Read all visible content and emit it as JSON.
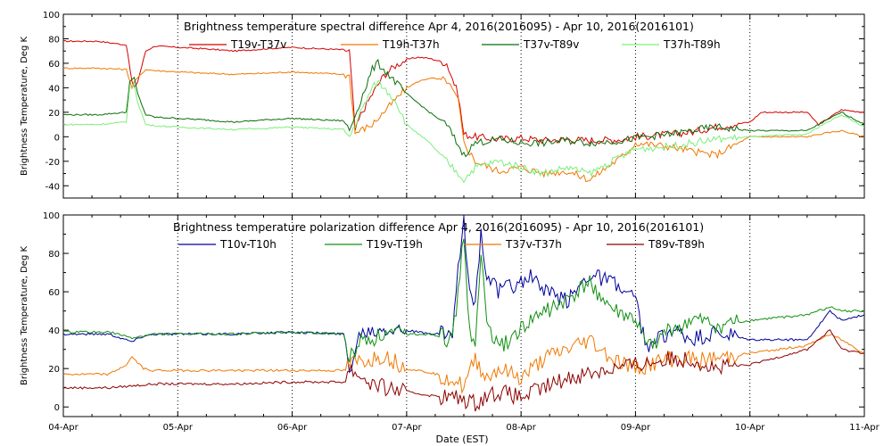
{
  "chart_data": [
    {
      "type": "line",
      "title": "Brightness temperature spectral difference    Apr  4, 2016(2016095) - Apr 10, 2016(2016101)",
      "ylabel": "Brightness Temperature, Deg K",
      "xlabel": "",
      "xlim": [
        "2016-04-04",
        "2016-04-11"
      ],
      "ylim": [
        -50,
        100
      ],
      "yticks": [
        "-40",
        "-20",
        "0",
        "20",
        "40",
        "60",
        "80",
        "100"
      ],
      "grid": "dotted vertical lines at day boundaries",
      "series": [
        {
          "name": "T19v-T37v",
          "color": "#d40000",
          "x": [
            4.0,
            4.3,
            4.55,
            4.6,
            4.62,
            4.65,
            4.72,
            4.8,
            5.0,
            5.2,
            5.5,
            5.8,
            6.0,
            6.2,
            6.45,
            6.5,
            6.55,
            6.6,
            6.7,
            6.8,
            6.9,
            7.0,
            7.1,
            7.2,
            7.35,
            7.45,
            7.5,
            7.6,
            7.8,
            8.0,
            8.2,
            8.4,
            8.6,
            8.9,
            9.0,
            9.3,
            9.5,
            9.7,
            10.0,
            10.1,
            10.5,
            10.6,
            10.8,
            11.0
          ],
          "y": [
            78,
            78,
            75,
            45,
            40,
            45,
            70,
            74,
            73,
            72,
            70,
            72,
            73,
            72,
            71,
            70,
            5,
            18,
            35,
            50,
            58,
            63,
            65,
            64,
            60,
            35,
            2,
            0,
            -2,
            -1,
            -3,
            -2,
            -3,
            -2,
            0,
            2,
            4,
            8,
            12,
            20,
            20,
            10,
            22,
            20
          ]
        },
        {
          "name": "T19h-T37h",
          "color": "#f07800",
          "x": [
            4.0,
            4.3,
            4.55,
            4.6,
            4.62,
            4.65,
            4.72,
            4.8,
            5.0,
            5.2,
            5.5,
            5.8,
            6.0,
            6.2,
            6.45,
            6.5,
            6.55,
            6.7,
            6.85,
            7.0,
            7.1,
            7.2,
            7.35,
            7.45,
            7.5,
            7.6,
            7.8,
            8.0,
            8.2,
            8.4,
            8.6,
            8.9,
            9.0,
            9.3,
            9.5,
            9.7,
            10.0,
            10.5,
            10.6,
            10.8,
            11.0
          ],
          "y": [
            56,
            56,
            55,
            40,
            45,
            48,
            55,
            54,
            53,
            52,
            51,
            52,
            53,
            52,
            51,
            50,
            3,
            10,
            25,
            40,
            45,
            48,
            46,
            30,
            -5,
            -20,
            -28,
            -25,
            -30,
            -28,
            -35,
            -15,
            -5,
            -8,
            -12,
            -15,
            0,
            0,
            2,
            5,
            0
          ]
        },
        {
          "name": "T37v-T89v",
          "color": "#0a6e0a",
          "x": [
            4.0,
            4.3,
            4.55,
            4.58,
            4.62,
            4.65,
            4.72,
            4.8,
            5.0,
            5.2,
            5.5,
            5.8,
            6.0,
            6.2,
            6.45,
            6.5,
            6.6,
            6.7,
            6.75,
            6.9,
            7.0,
            7.2,
            7.35,
            7.5,
            7.6,
            7.8,
            8.0,
            8.2,
            8.4,
            8.6,
            8.9,
            9.0,
            9.3,
            9.5,
            9.7,
            10.0,
            10.5,
            10.6,
            10.8,
            11.0
          ],
          "y": [
            18,
            18,
            20,
            45,
            48,
            35,
            18,
            16,
            15,
            14,
            12,
            14,
            15,
            14,
            13,
            5,
            30,
            55,
            60,
            45,
            35,
            20,
            10,
            -15,
            -5,
            -2,
            -5,
            -5,
            -3,
            -5,
            -3,
            -1,
            2,
            5,
            8,
            5,
            5,
            10,
            20,
            10
          ]
        },
        {
          "name": "T37h-T89h",
          "color": "#7cee7c",
          "x": [
            4.0,
            4.3,
            4.55,
            4.58,
            4.62,
            4.65,
            4.72,
            4.8,
            5.0,
            5.2,
            5.5,
            5.8,
            6.0,
            6.2,
            6.45,
            6.5,
            6.6,
            6.7,
            6.75,
            6.9,
            7.0,
            7.2,
            7.35,
            7.5,
            7.6,
            7.8,
            8.0,
            8.2,
            8.4,
            8.6,
            8.9,
            9.0,
            9.3,
            9.5,
            9.7,
            10.0,
            10.5,
            10.6,
            10.8,
            11.0
          ],
          "y": [
            10,
            10,
            12,
            40,
            42,
            28,
            10,
            9,
            8,
            7,
            6,
            7,
            8,
            7,
            6,
            0,
            20,
            40,
            45,
            30,
            10,
            -5,
            -20,
            -35,
            -25,
            -20,
            -25,
            -30,
            -25,
            -30,
            -15,
            -10,
            -8,
            -5,
            -2,
            0,
            2,
            8,
            18,
            8
          ]
        }
      ]
    },
    {
      "type": "line",
      "title": "Brightness temperature polarization difference    Apr  4, 2016(2016095) - Apr 10, 2016(2016101)",
      "ylabel": "Brightness Temperature, Deg K",
      "xlabel": "Date (EST)",
      "xlim": [
        "2016-04-04",
        "2016-04-11"
      ],
      "ylim": [
        -5,
        100
      ],
      "xticks": [
        "04-Apr",
        "05-Apr",
        "06-Apr",
        "07-Apr",
        "08-Apr",
        "09-Apr",
        "10-Apr",
        "11-Apr"
      ],
      "yticks": [
        "0",
        "20",
        "40",
        "60",
        "80",
        "100"
      ],
      "grid": "dotted vertical lines at day boundaries",
      "series": [
        {
          "name": "T10v-T10h",
          "color": "#00009a",
          "x": [
            4.0,
            4.4,
            4.6,
            4.7,
            4.8,
            5.0,
            5.5,
            6.0,
            6.45,
            6.5,
            6.6,
            6.7,
            6.8,
            7.0,
            7.2,
            7.4,
            7.45,
            7.5,
            7.55,
            7.6,
            7.65,
            7.7,
            7.8,
            8.0,
            8.1,
            8.2,
            8.4,
            8.6,
            8.8,
            9.0,
            9.1,
            9.3,
            9.5,
            9.7,
            10.0,
            10.5,
            10.7,
            10.8,
            11.0
          ],
          "y": [
            38,
            38,
            34,
            37,
            38,
            38,
            38,
            39,
            38,
            20,
            40,
            40,
            42,
            40,
            38,
            38,
            70,
            95,
            60,
            55,
            90,
            70,
            60,
            65,
            68,
            60,
            55,
            70,
            65,
            55,
            30,
            40,
            35,
            38,
            35,
            35,
            50,
            45,
            48
          ]
        },
        {
          "name": "T19v-T19h",
          "color": "#109010",
          "x": [
            4.0,
            4.4,
            4.6,
            4.7,
            4.8,
            5.0,
            5.5,
            6.0,
            6.45,
            6.5,
            6.6,
            6.7,
            6.8,
            7.0,
            7.2,
            7.4,
            7.45,
            7.5,
            7.55,
            7.6,
            7.65,
            7.7,
            7.8,
            8.0,
            8.2,
            8.4,
            8.6,
            8.8,
            9.0,
            9.1,
            9.3,
            9.5,
            9.7,
            10.0,
            10.5,
            10.7,
            10.8,
            11.0
          ],
          "y": [
            39,
            39,
            36,
            37,
            38,
            38,
            38,
            39,
            38,
            25,
            35,
            36,
            38,
            38,
            38,
            35,
            60,
            90,
            40,
            30,
            80,
            45,
            30,
            40,
            50,
            55,
            65,
            50,
            45,
            30,
            40,
            45,
            42,
            45,
            48,
            52,
            50,
            50
          ]
        },
        {
          "name": "T37v-T37h",
          "color": "#f07800",
          "x": [
            4.0,
            4.4,
            4.55,
            4.6,
            4.7,
            4.8,
            5.0,
            5.5,
            6.0,
            6.45,
            6.5,
            6.6,
            6.7,
            6.8,
            7.0,
            7.2,
            7.4,
            7.5,
            7.6,
            7.7,
            7.8,
            8.0,
            8.2,
            8.4,
            8.6,
            8.8,
            9.0,
            9.3,
            9.5,
            9.7,
            10.0,
            10.5,
            10.7,
            10.8,
            11.0
          ],
          "y": [
            17,
            17,
            22,
            26,
            20,
            19,
            19,
            19,
            19,
            19,
            22,
            24,
            25,
            27,
            20,
            18,
            15,
            10,
            25,
            15,
            20,
            15,
            25,
            30,
            35,
            25,
            20,
            25,
            25,
            25,
            28,
            32,
            38,
            35,
            28
          ]
        },
        {
          "name": "T89v-T89h",
          "color": "#8c0000",
          "x": [
            4.0,
            4.4,
            4.6,
            4.8,
            5.0,
            5.5,
            6.0,
            6.45,
            6.5,
            6.6,
            6.7,
            6.8,
            7.0,
            7.2,
            7.4,
            7.5,
            7.6,
            7.7,
            7.8,
            8.0,
            8.2,
            8.4,
            8.6,
            8.8,
            9.0,
            9.3,
            9.5,
            9.7,
            10.0,
            10.5,
            10.7,
            10.8,
            11.0
          ],
          "y": [
            10,
            10,
            11,
            12,
            12,
            12,
            13,
            13,
            20,
            16,
            12,
            10,
            8,
            6,
            5,
            4,
            2,
            6,
            8,
            5,
            10,
            15,
            18,
            20,
            22,
            25,
            25,
            20,
            22,
            30,
            40,
            30,
            28
          ]
        }
      ]
    }
  ]
}
